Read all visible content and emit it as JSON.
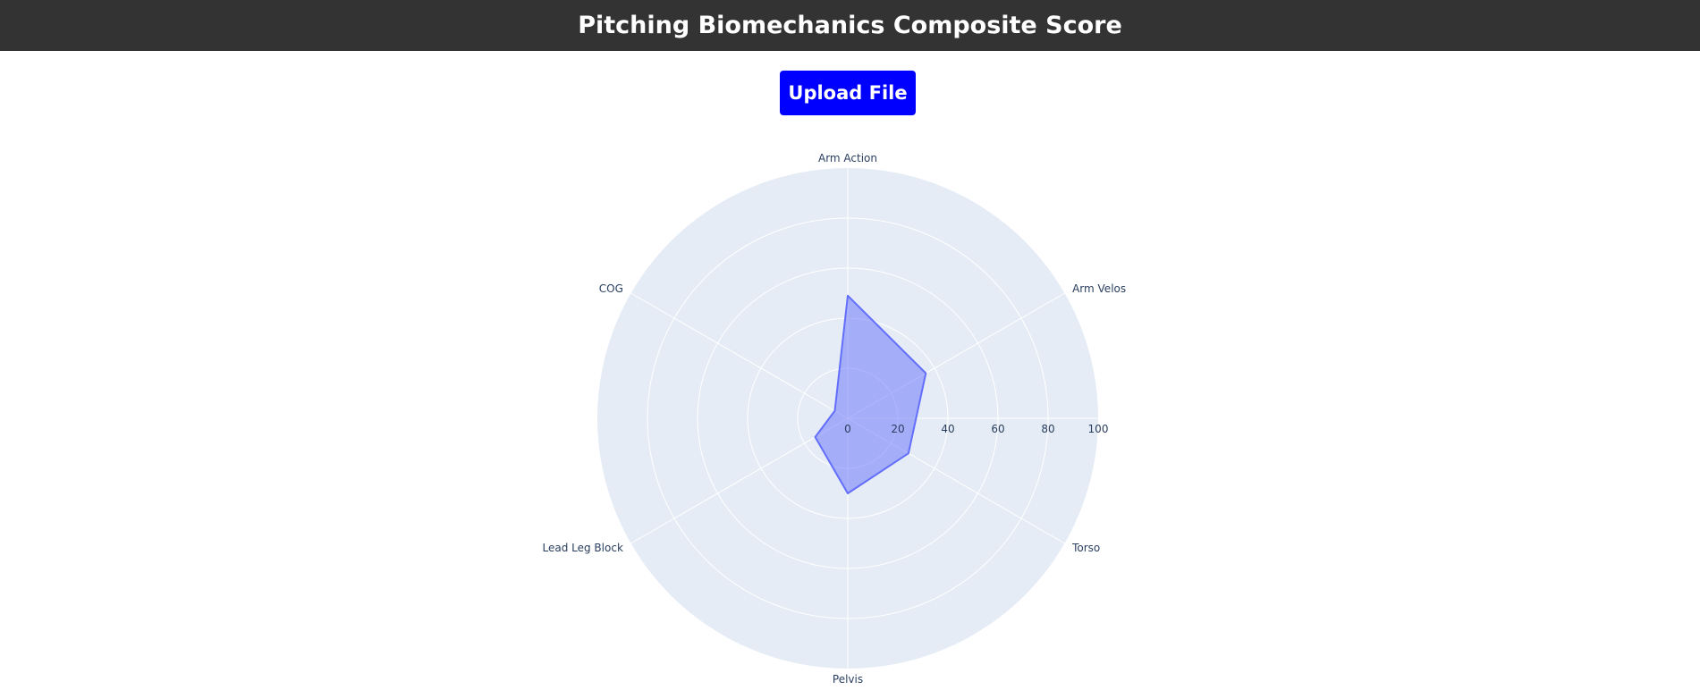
{
  "header": {
    "title": "Pitching Biomechanics Composite Score"
  },
  "upload": {
    "label": "Upload File"
  },
  "colors": {
    "header_bg": "#333333",
    "button_bg": "#0000ff",
    "polar_bg": "#e5ecf6",
    "grid": "#ffffff",
    "series_line": "#636efa",
    "series_fill": "rgba(99,110,250,0.5)",
    "text": "#2a3f5f"
  },
  "chart_data": {
    "type": "radar",
    "categories": [
      "Arm Action",
      "Arm Velos",
      "Torso",
      "Pelvis",
      "Lead Leg Block",
      "COG"
    ],
    "series": [
      {
        "values": [
          49,
          36,
          28,
          30,
          15,
          6
        ]
      }
    ],
    "radial_range": [
      0,
      100
    ],
    "radial_ticks": [
      "0",
      "20",
      "40",
      "60",
      "80",
      "100"
    ],
    "grid": true,
    "title": ""
  }
}
